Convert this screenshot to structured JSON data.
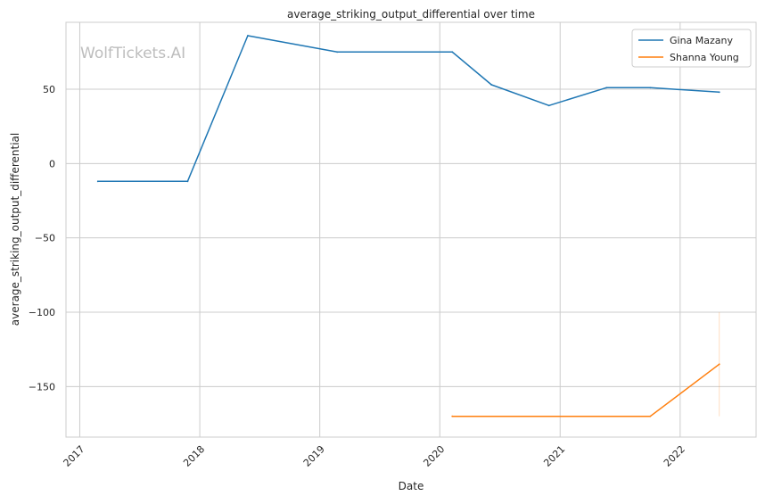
{
  "watermark": "WolfTickets.AI",
  "chart_data": {
    "type": "line",
    "title": "average_striking_output_differential over time",
    "xlabel": "Date",
    "ylabel": "average_striking_output_differential",
    "x_ticks": [
      "2017",
      "2018",
      "2019",
      "2020",
      "2021",
      "2022"
    ],
    "y_ticks": [
      50,
      0,
      -50,
      -100,
      -150
    ],
    "y_tick_labels": [
      "50",
      "0",
      "−50",
      "−100",
      "−150"
    ],
    "xlim": [
      "2016-11-20",
      "2022-08-20"
    ],
    "ylim": [
      -184,
      95
    ],
    "grid": true,
    "legend_position": "top-right",
    "series": [
      {
        "name": "Gina Mazany",
        "color": "#1f77b4",
        "points": [
          {
            "x": "2017-02-25",
            "y": -12
          },
          {
            "x": "2017-11-25",
            "y": -12
          },
          {
            "x": "2018-05-27",
            "y": 86
          },
          {
            "x": "2019-02-23",
            "y": 75
          },
          {
            "x": "2020-02-08",
            "y": 75
          },
          {
            "x": "2020-06-06",
            "y": 53
          },
          {
            "x": "2020-11-28",
            "y": 39
          },
          {
            "x": "2021-05-22",
            "y": 51
          },
          {
            "x": "2021-10-02",
            "y": 51
          },
          {
            "x": "2022-04-30",
            "y": 48
          }
        ]
      },
      {
        "name": "Shanna Young",
        "color": "#ff7f0e",
        "points": [
          {
            "x": "2020-02-08",
            "y": -170
          },
          {
            "x": "2021-10-02",
            "y": -170
          },
          {
            "x": "2022-04-30",
            "y": -135
          }
        ],
        "error_bar": {
          "x": "2022-04-30",
          "low": -170,
          "high": -100
        }
      }
    ]
  }
}
